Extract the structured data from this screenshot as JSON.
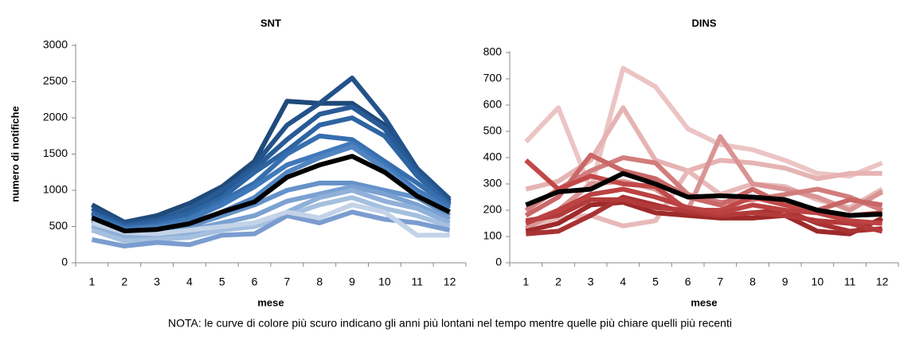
{
  "chart_data": [
    {
      "type": "line",
      "title": "SNT",
      "xlabel": "mese",
      "ylabel": "numero di notifiche",
      "categories": [
        1,
        2,
        3,
        4,
        5,
        6,
        7,
        8,
        9,
        10,
        11,
        12
      ],
      "ylim": [
        0,
        3000
      ],
      "yticks": [
        0,
        500,
        1000,
        1500,
        2000,
        2500,
        3000
      ],
      "series": [
        {
          "color": "#1f4a7a",
          "values": [
            800,
            560,
            650,
            820,
            1050,
            1400,
            2230,
            2200,
            2200,
            1900,
            1300,
            850
          ]
        },
        {
          "color": "#23528a",
          "values": [
            750,
            550,
            600,
            700,
            950,
            1350,
            1900,
            2200,
            2550,
            2000,
            1300,
            880
          ]
        },
        {
          "color": "#285b96",
          "values": [
            700,
            520,
            580,
            750,
            1000,
            1300,
            1700,
            2050,
            2150,
            1850,
            1250,
            820
          ]
        },
        {
          "color": "#2e64a2",
          "values": [
            680,
            500,
            560,
            680,
            900,
            1250,
            1550,
            1900,
            2000,
            1750,
            1200,
            800
          ]
        },
        {
          "color": "#376fae",
          "values": [
            650,
            480,
            520,
            620,
            850,
            1100,
            1500,
            1750,
            1700,
            1400,
            1100,
            780
          ]
        },
        {
          "color": "#4079ba",
          "values": [
            600,
            460,
            500,
            600,
            800,
            1050,
            1350,
            1500,
            1650,
            1350,
            1000,
            750
          ]
        },
        {
          "color": "#5185c2",
          "values": [
            580,
            450,
            480,
            550,
            700,
            900,
            1250,
            1450,
            1600,
            1300,
            950,
            700
          ]
        },
        {
          "color": "#6592c9",
          "values": [
            550,
            420,
            450,
            500,
            650,
            800,
            1000,
            1100,
            1100,
            1000,
            900,
            650
          ]
        },
        {
          "color": "#7aa1d1",
          "values": [
            520,
            380,
            400,
            450,
            550,
            650,
            850,
            950,
            1050,
            950,
            800,
            600
          ]
        },
        {
          "color": "#8fb0d8",
          "values": [
            500,
            350,
            380,
            400,
            500,
            550,
            700,
            900,
            1000,
            850,
            750,
            550
          ]
        },
        {
          "color": "#a5c0df",
          "values": [
            450,
            300,
            320,
            350,
            450,
            500,
            650,
            800,
            900,
            750,
            650,
            500
          ]
        },
        {
          "color": "#7b9cd0",
          "values": [
            320,
            230,
            280,
            250,
            380,
            400,
            650,
            550,
            700,
            600,
            550,
            450
          ]
        },
        {
          "color": "#c3d3e8",
          "values": [
            550,
            420,
            400,
            450,
            500,
            550,
            700,
            620,
            800,
            700,
            380,
            380
          ]
        },
        {
          "color": "#000000",
          "values": [
            620,
            440,
            460,
            540,
            700,
            840,
            1180,
            1350,
            1470,
            1250,
            920,
            700
          ]
        }
      ]
    },
    {
      "type": "line",
      "title": "DINS",
      "xlabel": "mese",
      "categories": [
        1,
        2,
        3,
        4,
        5,
        6,
        7,
        8,
        9,
        10,
        11,
        12
      ],
      "ylim": [
        0,
        800
      ],
      "yticks": [
        0,
        100,
        200,
        300,
        400,
        500,
        600,
        700,
        800
      ],
      "series": [
        {
          "color": "#ecc4c4",
          "values": [
            460,
            590,
            280,
            740,
            670,
            510,
            450,
            430,
            390,
            340,
            330,
            380
          ]
        },
        {
          "color": "#e6b3b3",
          "values": [
            280,
            310,
            390,
            590,
            390,
            350,
            390,
            380,
            360,
            320,
            340,
            340
          ]
        },
        {
          "color": "#e8b9b9",
          "values": [
            140,
            170,
            180,
            140,
            160,
            350,
            260,
            300,
            290,
            240,
            210,
            280
          ]
        },
        {
          "color": "#d99494",
          "values": [
            130,
            200,
            300,
            310,
            280,
            200,
            480,
            300,
            280,
            250,
            200,
            270
          ]
        },
        {
          "color": "#d27d7d",
          "values": [
            200,
            280,
            350,
            400,
            380,
            260,
            230,
            240,
            260,
            280,
            250,
            200
          ]
        },
        {
          "color": "#ca6767",
          "values": [
            180,
            250,
            410,
            350,
            320,
            250,
            220,
            280,
            220,
            200,
            240,
            220
          ]
        },
        {
          "color": "#c24848",
          "values": [
            390,
            280,
            330,
            300,
            290,
            200,
            200,
            250,
            220,
            200,
            180,
            190
          ]
        },
        {
          "color": "#9e2a2a",
          "values": [
            120,
            150,
            220,
            230,
            190,
            180,
            170,
            170,
            180,
            120,
            110,
            170
          ]
        },
        {
          "color": "#a93232",
          "values": [
            110,
            120,
            180,
            250,
            220,
            190,
            180,
            190,
            200,
            150,
            120,
            130
          ]
        },
        {
          "color": "#b33a3a",
          "values": [
            160,
            180,
            240,
            240,
            210,
            200,
            180,
            190,
            180,
            160,
            150,
            120
          ]
        },
        {
          "color": "#bc4242",
          "values": [
            150,
            200,
            260,
            280,
            250,
            210,
            190,
            220,
            200,
            190,
            160,
            150
          ]
        },
        {
          "color": "#000000",
          "values": [
            220,
            270,
            280,
            340,
            300,
            250,
            255,
            250,
            240,
            200,
            180,
            185
          ]
        }
      ]
    }
  ],
  "note": "NOTA: le curve di colore più scuro indicano gli anni più lontani nel tempo mentre quelle più chiare quelli più recenti"
}
